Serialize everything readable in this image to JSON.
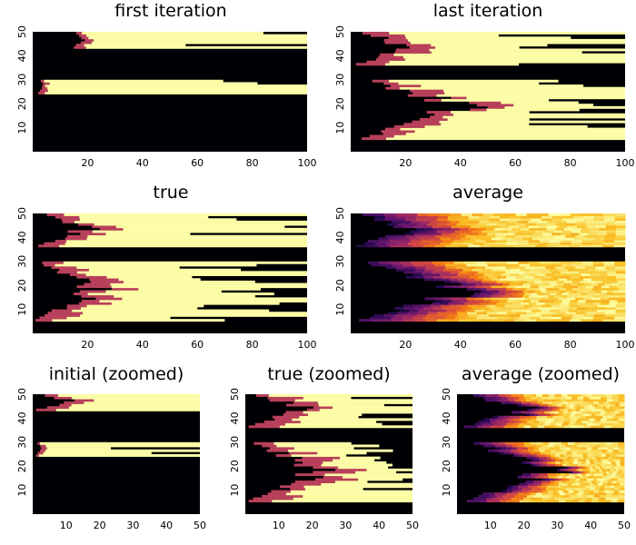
{
  "palette": {
    "black": "#000004",
    "red": "#b8405a",
    "yellow": "#fcfda6",
    "mid": "#d45a30"
  },
  "chart_data": [
    {
      "type": "heatmap",
      "title": "first iteration",
      "xlim": [
        0,
        100
      ],
      "ylim": [
        0,
        50
      ],
      "xticks": [
        20,
        40,
        60,
        80,
        100
      ],
      "yticks": [
        10,
        20,
        30,
        40,
        50
      ],
      "mode": "binary",
      "xmax": 100,
      "ymax": 50,
      "bands": [
        {
          "y": [
            43,
            50
          ],
          "red": [
            15,
            20
          ],
          "yellow": [
            20,
            100
          ]
        },
        {
          "y": [
            24,
            30
          ],
          "red": [
            2,
            5
          ],
          "yellow": [
            5,
            100
          ]
        }
      ]
    },
    {
      "type": "heatmap",
      "title": "last iteration",
      "xlim": [
        0,
        100
      ],
      "ylim": [
        0,
        50
      ],
      "xticks": [
        20,
        40,
        60,
        80,
        100
      ],
      "yticks": [
        10,
        20,
        30,
        40,
        50
      ],
      "mode": "binary",
      "xmax": 100,
      "ymax": 50,
      "bands": [
        {
          "y": [
            36,
            50
          ],
          "red": [
            2,
            30
          ],
          "yellow": [
            16,
            100
          ]
        },
        {
          "y": [
            5,
            30
          ],
          "red": [
            4,
            55
          ],
          "yellow": [
            18,
            100
          ]
        }
      ]
    },
    {
      "type": "heatmap",
      "title": "true",
      "xlim": [
        0,
        100
      ],
      "ylim": [
        0,
        50
      ],
      "xticks": [
        20,
        40,
        60,
        80,
        100
      ],
      "yticks": [
        10,
        20,
        30,
        40,
        50
      ],
      "mode": "binary",
      "xmax": 100,
      "ymax": 50,
      "bands": [
        {
          "y": [
            36,
            50
          ],
          "red": [
            2,
            25
          ],
          "yellow": [
            12,
            100
          ]
        },
        {
          "y": [
            5,
            30
          ],
          "red": [
            1,
            32
          ],
          "yellow": [
            14,
            100
          ]
        }
      ]
    },
    {
      "type": "heatmap",
      "title": "average",
      "xlim": [
        0,
        100
      ],
      "ylim": [
        0,
        50
      ],
      "xticks": [
        20,
        40,
        60,
        80,
        100
      ],
      "yticks": [
        10,
        20,
        30,
        40,
        50
      ],
      "mode": "average",
      "xmax": 100,
      "ymax": 50,
      "bands": [
        {
          "y": [
            36,
            50
          ],
          "red": [
            2,
            28
          ],
          "yellow": [
            15,
            100
          ]
        },
        {
          "y": [
            5,
            30
          ],
          "red": [
            3,
            55
          ],
          "yellow": [
            18,
            100
          ]
        }
      ]
    },
    {
      "type": "heatmap",
      "title": "initial (zoomed)",
      "xlim": [
        0,
        50
      ],
      "ylim": [
        0,
        50
      ],
      "xticks": [
        10,
        20,
        30,
        40,
        50
      ],
      "yticks": [
        10,
        20,
        30,
        40,
        50
      ],
      "mode": "binary",
      "xmax": 50,
      "ymax": 50,
      "bands": [
        {
          "y": [
            43,
            50
          ],
          "red": [
            1,
            16
          ],
          "yellow": [
            8,
            50
          ]
        },
        {
          "y": [
            24,
            30
          ],
          "red": [
            1,
            3
          ],
          "yellow": [
            3,
            50
          ]
        }
      ]
    },
    {
      "type": "heatmap",
      "title": "true (zoomed)",
      "xlim": [
        0,
        50
      ],
      "ylim": [
        0,
        50
      ],
      "xticks": [
        10,
        20,
        30,
        40,
        50
      ],
      "yticks": [
        10,
        20,
        30,
        40,
        50
      ],
      "mode": "binary",
      "xmax": 50,
      "ymax": 50,
      "bands": [
        {
          "y": [
            36,
            50
          ],
          "red": [
            1,
            25
          ],
          "yellow": [
            12,
            50
          ]
        },
        {
          "y": [
            5,
            30
          ],
          "red": [
            1,
            32
          ],
          "yellow": [
            14,
            50
          ]
        }
      ]
    },
    {
      "type": "heatmap",
      "title": "average (zoomed)",
      "xlim": [
        0,
        50
      ],
      "ylim": [
        0,
        50
      ],
      "xticks": [
        10,
        20,
        30,
        40,
        50
      ],
      "yticks": [
        10,
        20,
        30,
        40,
        50
      ],
      "mode": "average",
      "xmax": 50,
      "ymax": 50,
      "bands": [
        {
          "y": [
            36,
            50
          ],
          "red": [
            2,
            28
          ],
          "yellow": [
            15,
            50
          ]
        },
        {
          "y": [
            5,
            30
          ],
          "red": [
            3,
            40
          ],
          "yellow": [
            18,
            50
          ]
        }
      ]
    }
  ]
}
